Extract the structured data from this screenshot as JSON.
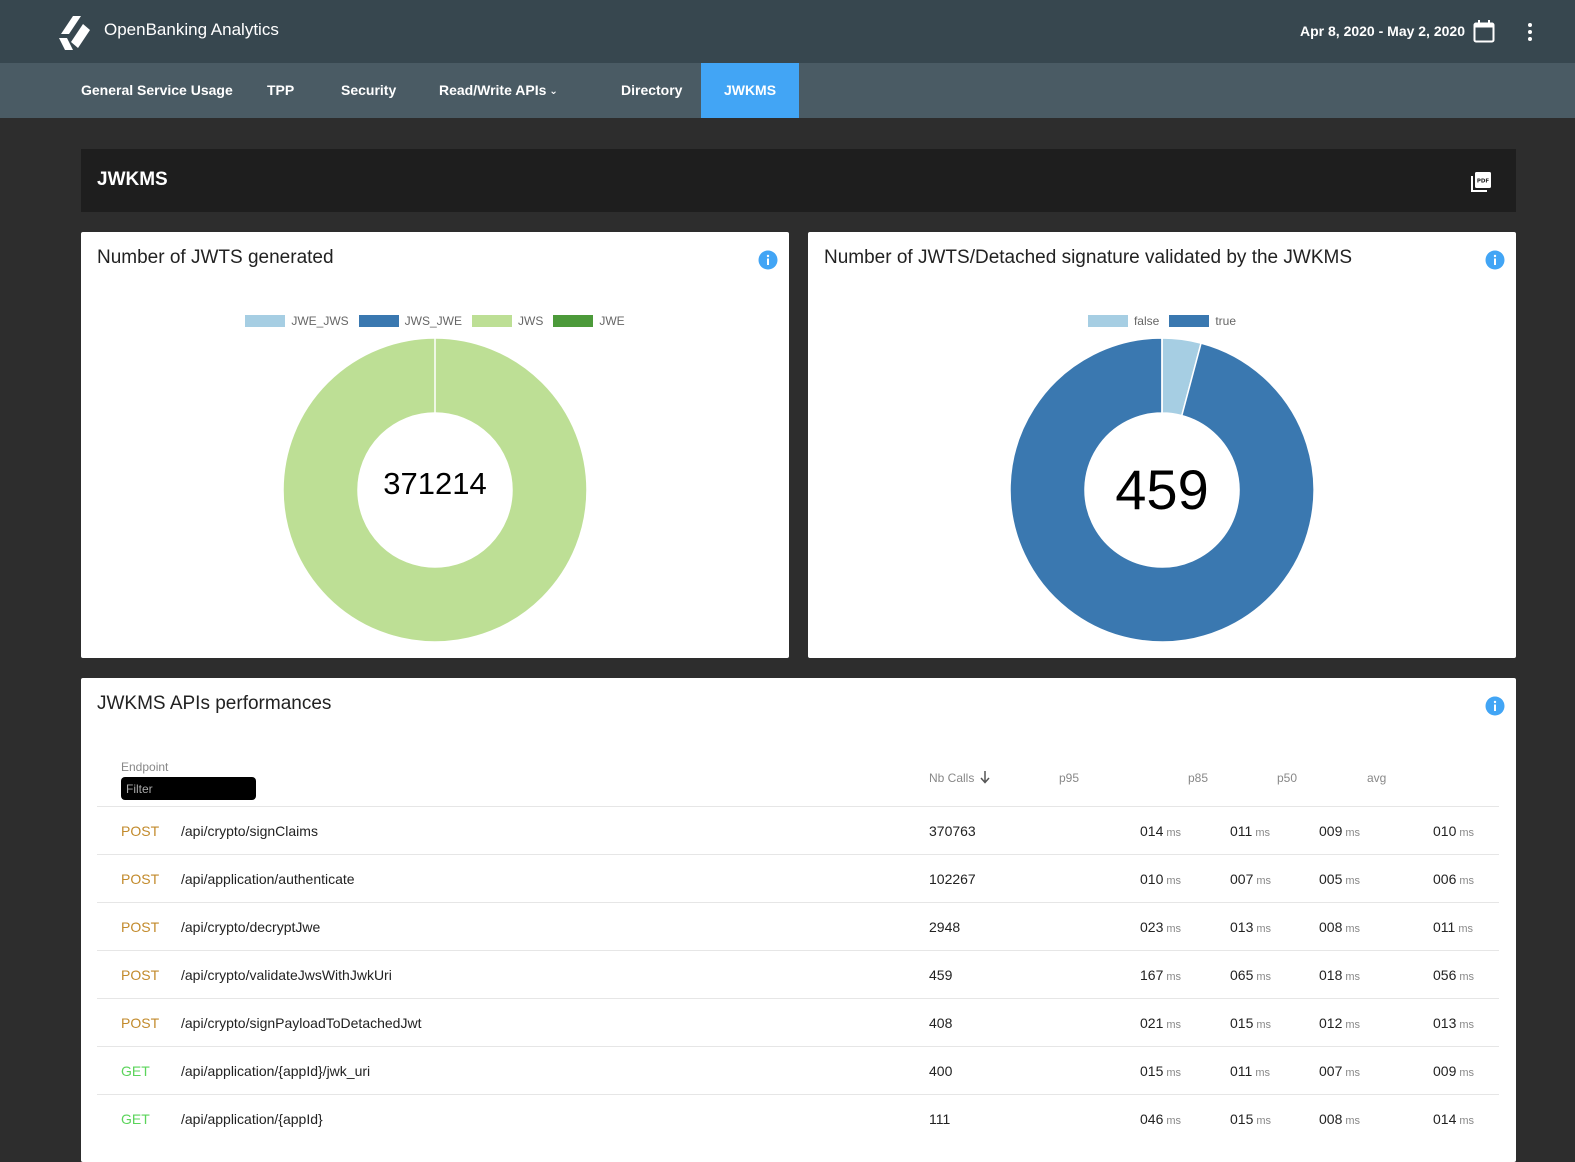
{
  "app": {
    "title": "OpenBanking Analytics",
    "date_range": "Apr 8, 2020 - May 2, 2020"
  },
  "nav": {
    "tabs": [
      {
        "label": "General Service Usage"
      },
      {
        "label": "TPP"
      },
      {
        "label": "Security"
      },
      {
        "label": "Read/Write APIs"
      },
      {
        "label": "Directory"
      },
      {
        "label": "JWKMS",
        "active": true
      }
    ]
  },
  "section": {
    "title": "JWKMS"
  },
  "jwts_generated": {
    "title": "Number of JWTS generated",
    "total": "371214",
    "legend": [
      "JWE_JWS",
      "JWS_JWE",
      "JWS",
      "JWE"
    ]
  },
  "jwts_validated": {
    "title": "Number of JWTS/Detached signature validated by the JWKMS",
    "total": "459",
    "legend": [
      "false",
      "true"
    ]
  },
  "chart_data": [
    {
      "type": "pie",
      "title": "Number of JWTS generated",
      "categories": [
        "JWE_JWS",
        "JWS_JWE",
        "JWS",
        "JWE"
      ],
      "values": [
        0,
        0,
        371214,
        0
      ],
      "colors": [
        "#a6cee3",
        "#3a78b0",
        "#bddf95",
        "#4c9a3a"
      ],
      "center_label": "371214",
      "legend": "top"
    },
    {
      "type": "pie",
      "title": "Number of JWTS/Detached signature validated by the JWKMS",
      "categories": [
        "false",
        "true"
      ],
      "values": [
        19,
        440
      ],
      "colors": [
        "#a6cee3",
        "#3a78b0"
      ],
      "center_label": "459",
      "legend": "top"
    }
  ],
  "perf": {
    "title": "JWKMS APIs performances",
    "columns": {
      "endpoint": "Endpoint",
      "filter_placeholder": "Filter",
      "calls": "Nb Calls",
      "p95": "p95",
      "p85": "p85",
      "p50": "p50",
      "avg": "avg"
    },
    "unit": "ms",
    "rows": [
      {
        "method": "POST",
        "path": "/api/crypto/signClaims",
        "calls": "370763",
        "p95": "014",
        "p85": "011",
        "p50": "009",
        "avg": "010"
      },
      {
        "method": "POST",
        "path": "/api/application/authenticate",
        "calls": "102267",
        "p95": "010",
        "p85": "007",
        "p50": "005",
        "avg": "006"
      },
      {
        "method": "POST",
        "path": "/api/crypto/decryptJwe",
        "calls": "2948",
        "p95": "023",
        "p85": "013",
        "p50": "008",
        "avg": "011"
      },
      {
        "method": "POST",
        "path": "/api/crypto/validateJwsWithJwkUri",
        "calls": "459",
        "p95": "167",
        "p85": "065",
        "p50": "018",
        "avg": "056"
      },
      {
        "method": "POST",
        "path": "/api/crypto/signPayloadToDetachedJwt",
        "calls": "408",
        "p95": "021",
        "p85": "015",
        "p50": "012",
        "avg": "013"
      },
      {
        "method": "GET",
        "path": "/api/application/{appId}/jwk_uri",
        "calls": "400",
        "p95": "015",
        "p85": "011",
        "p50": "007",
        "avg": "009"
      },
      {
        "method": "GET",
        "path": "/api/application/{appId}",
        "calls": "111",
        "p95": "046",
        "p85": "015",
        "p50": "008",
        "avg": "014"
      }
    ]
  }
}
